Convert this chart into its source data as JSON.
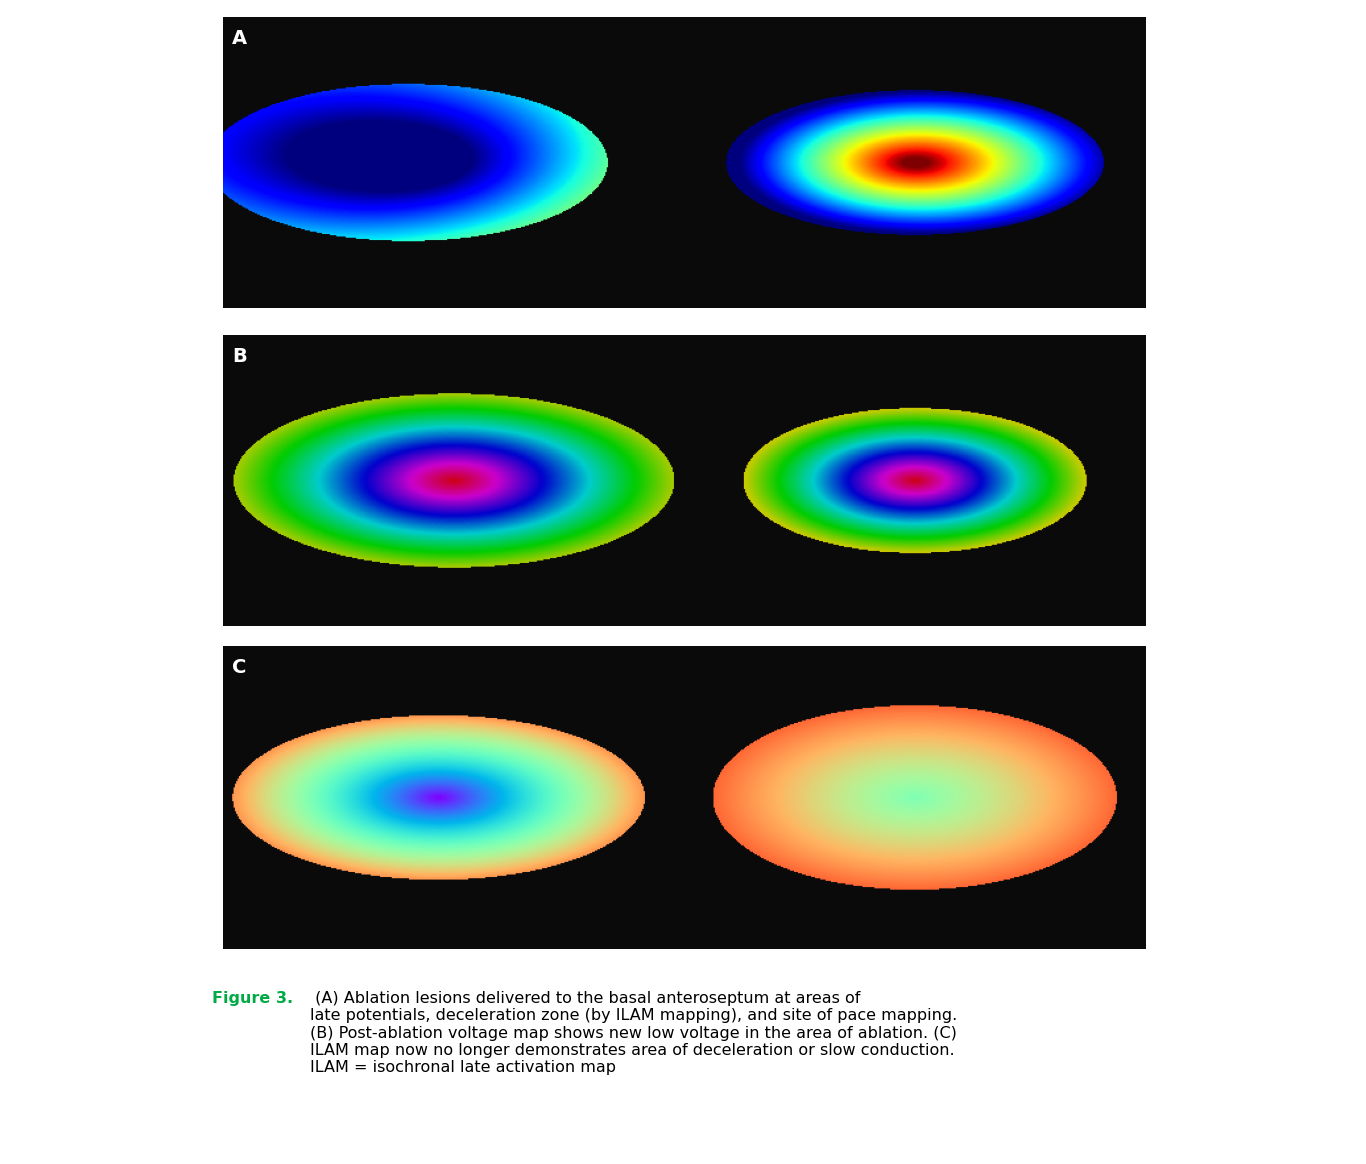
{
  "figure_title": "Figure 3.",
  "caption_bold": "Figure 3.",
  "caption_text": " (A) Ablation lesions delivered to the basal anteroseptum at areas of\nlate potentials, deceleration zone (by ILAM mapping), and site of pace mapping.\n(B) Post-ablation voltage map shows new low voltage in the area of ablation. (C)\nILAM map now no longer demonstrates area of deceleration or slow conduction.\nILAM = isochronal late activation map",
  "background_color": "#ffffff",
  "panel_bg": "#000000",
  "label_color": "#ffffff",
  "caption_title_color": "#00aa44",
  "caption_text_color": "#000000",
  "panel_labels": [
    "A",
    "B",
    "C"
  ],
  "outer_bg": "#d0d0d0",
  "fig_width": 13.66,
  "fig_height": 11.64,
  "caption_fontsize": 11.5,
  "label_fontsize": 14
}
